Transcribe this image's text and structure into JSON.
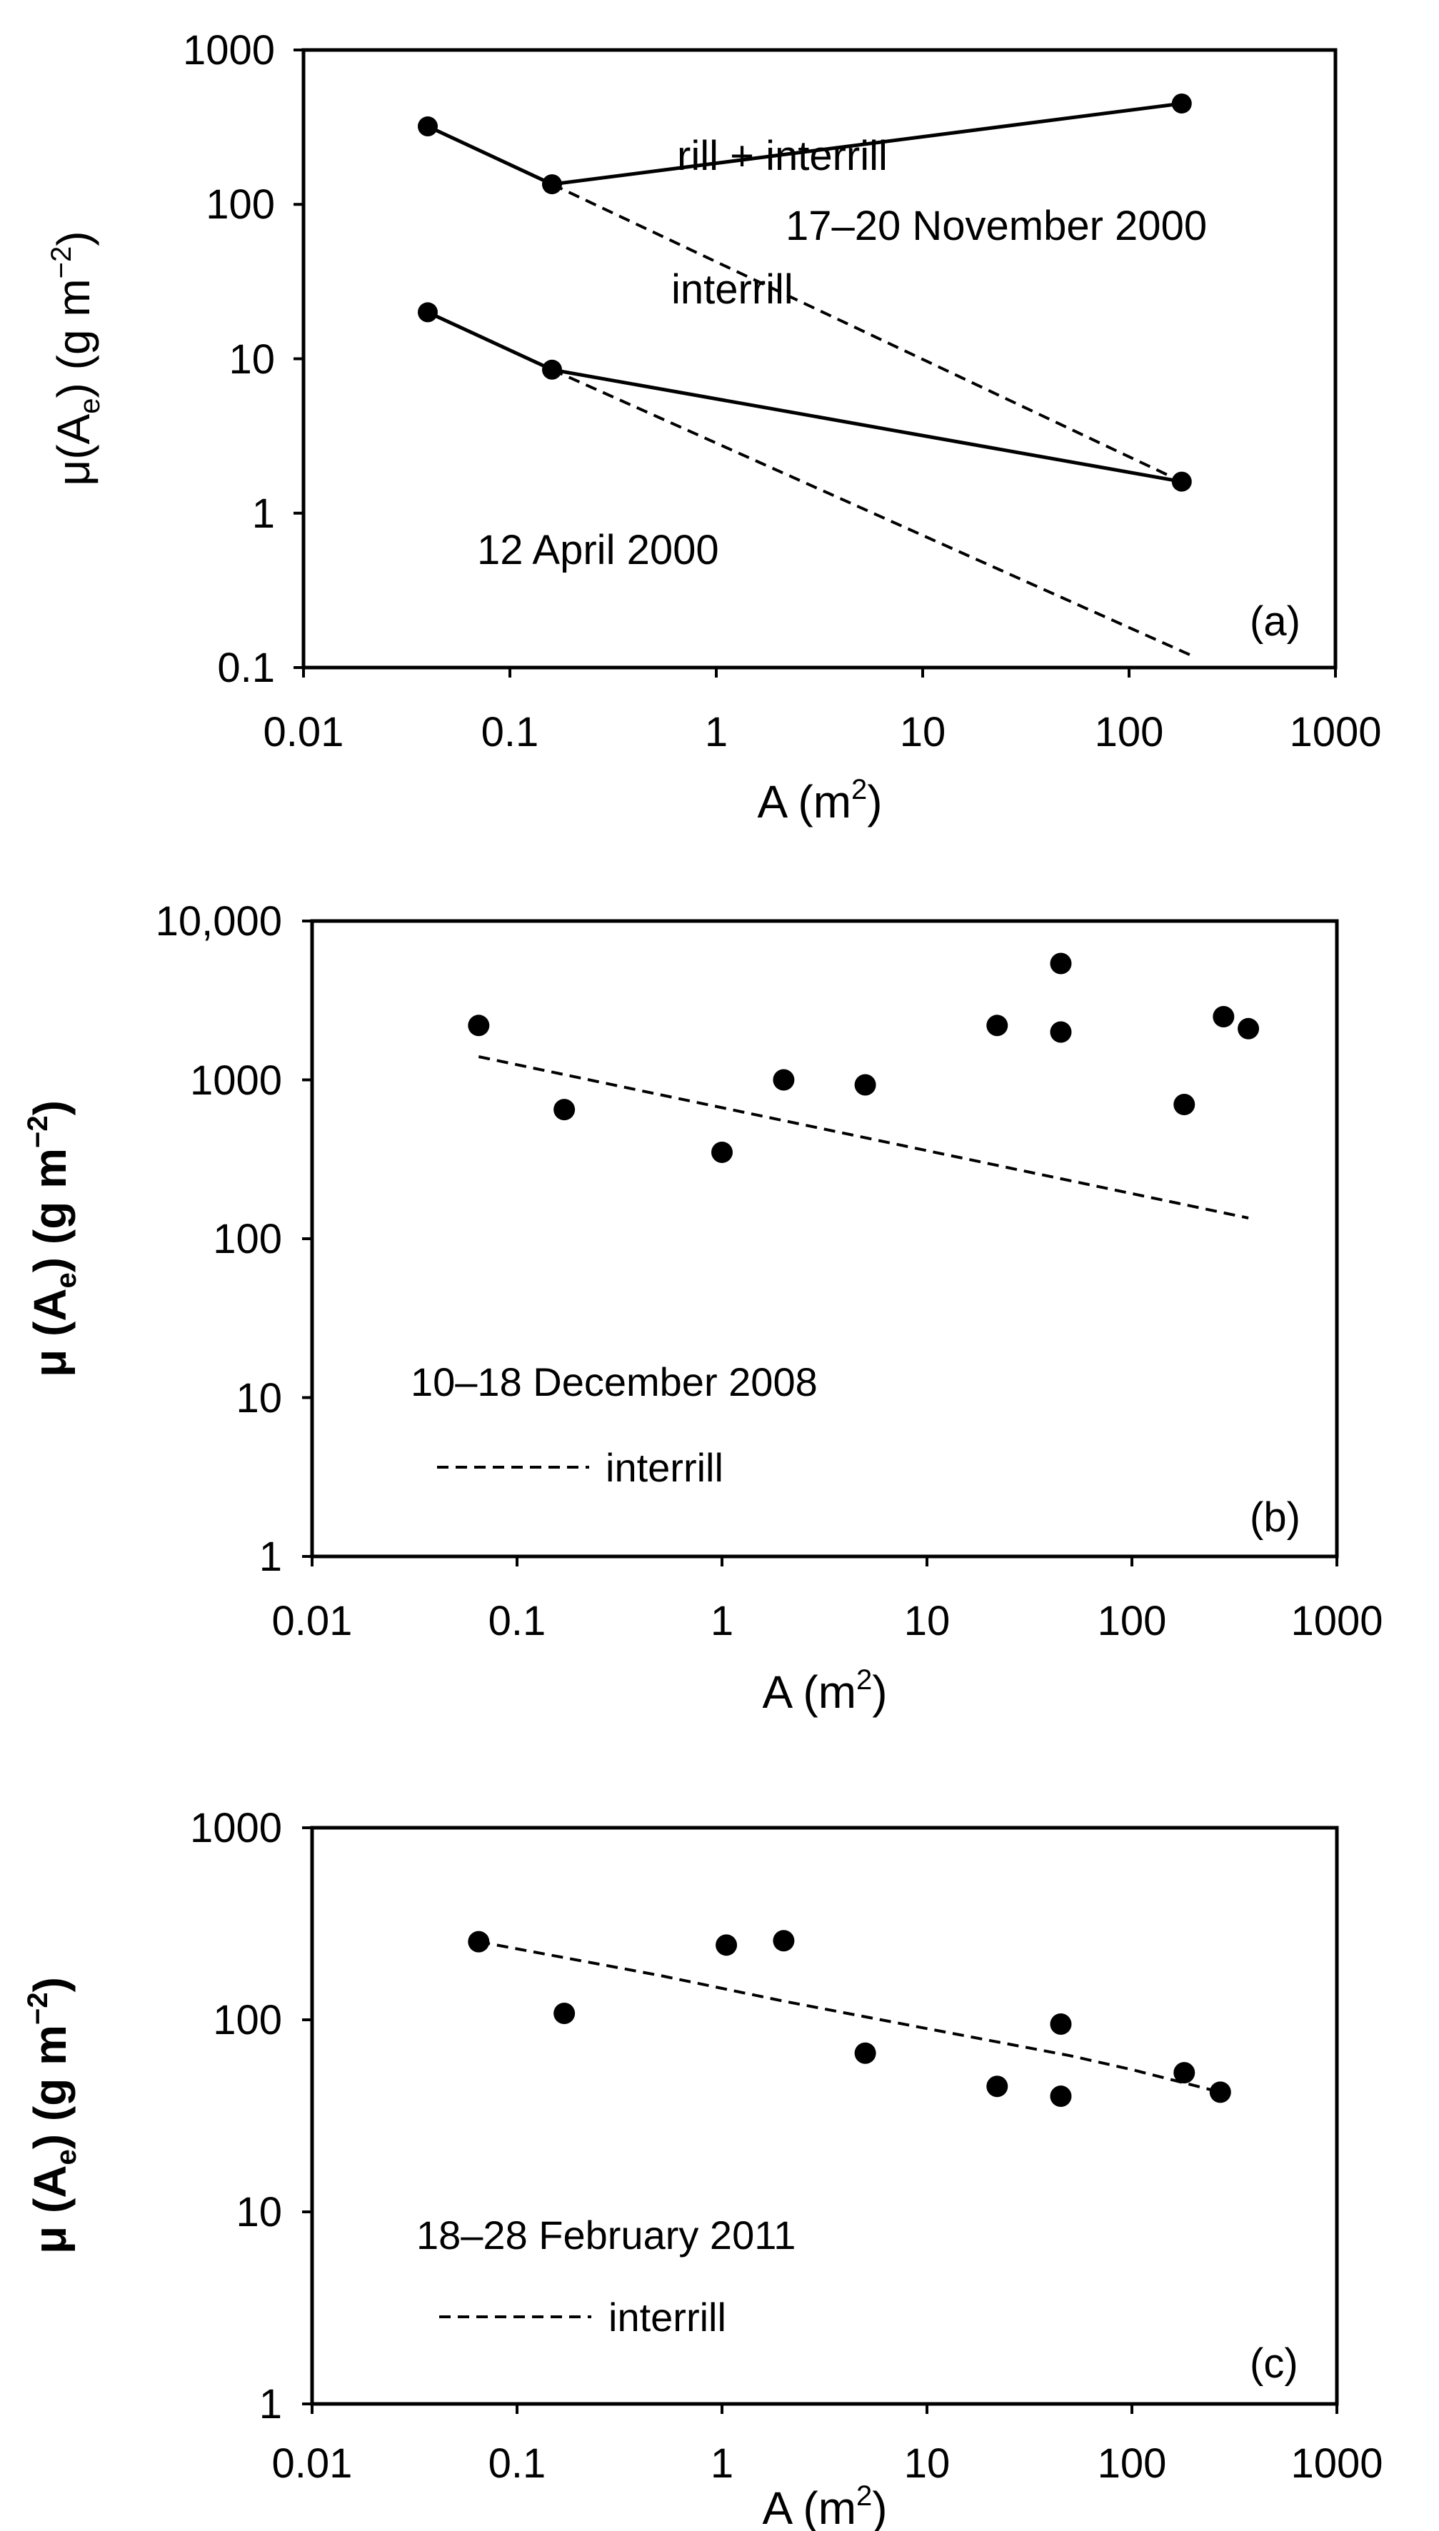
{
  "chart_data": [
    {
      "type": "line",
      "panel_label": "(a)",
      "xscale": "log",
      "yscale": "log",
      "xlim": [
        0.01,
        1000
      ],
      "ylim": [
        0.1,
        1000
      ],
      "xticks": [
        "0.01",
        "0.1",
        "1",
        "10",
        "100",
        "1000"
      ],
      "yticks": [
        "0.1",
        "1",
        "10",
        "100",
        "1000"
      ],
      "xlabel": {
        "main": "A (m",
        "sup": "2",
        "end": ")"
      },
      "ylabel": {
        "main": "μ(A",
        "sub": "e",
        "end": ") (g m",
        "sup": "−2",
        "end2": ")"
      },
      "series": [
        {
          "name": "17–20 November 2000 rill + interrill",
          "style": "solid",
          "markers": true,
          "x": [
            0.04,
            0.16,
            180
          ],
          "y": [
            320,
            135,
            450
          ]
        },
        {
          "name": "17–20 November 2000 interrill",
          "style": "dashed",
          "markers": false,
          "x": [
            0.16,
            180
          ],
          "y": [
            135,
            1.6
          ]
        },
        {
          "name": "12 April 2000 rill + interrill",
          "style": "solid",
          "markers": true,
          "x": [
            0.04,
            0.16,
            180
          ],
          "y": [
            20,
            8.5,
            1.6
          ]
        },
        {
          "name": "12 April 2000 interrill",
          "style": "dashed",
          "markers": false,
          "x": [
            0.16,
            200
          ],
          "y": [
            8.5,
            0.12
          ]
        }
      ],
      "annotations": {
        "rill_interrill": "rill + interrill",
        "interrill": "interrill",
        "event1": "17–20 November 2000",
        "event2": "12 April 2000"
      }
    },
    {
      "type": "scatter",
      "panel_label": "(b)",
      "xscale": "log",
      "yscale": "log",
      "xlim": [
        0.01,
        1000
      ],
      "ylim": [
        1,
        10000
      ],
      "xticks": [
        "0.01",
        "0.1",
        "1",
        "10",
        "100",
        "1000"
      ],
      "yticks": [
        "1",
        "10",
        "100",
        "1000",
        "10,000"
      ],
      "xlabel": {
        "main": "A (m",
        "sup": "2",
        "end": ")"
      },
      "ylabel": {
        "main": "μ (A",
        "sub": "e",
        "end": ") (g m",
        "sup": "−2",
        "end2": ")"
      },
      "points": {
        "x": [
          0.065,
          0.17,
          1.0,
          2.0,
          5.0,
          22,
          45,
          45,
          180,
          280,
          370
        ],
        "y": [
          2200,
          650,
          350,
          1000,
          930,
          2200,
          5400,
          2000,
          700,
          2500,
          2100
        ]
      },
      "trend": {
        "name": "interrill",
        "style": "dashed",
        "x": [
          0.065,
          370
        ],
        "y": [
          1400,
          135
        ]
      },
      "annotation": "10–18 December 2008",
      "legend": "interrill"
    },
    {
      "type": "scatter",
      "panel_label": "(c)",
      "xscale": "log",
      "yscale": "log",
      "xlim": [
        0.01,
        1000
      ],
      "ylim": [
        1,
        1000
      ],
      "xticks": [
        "0.01",
        "0.1",
        "1",
        "10",
        "100",
        "1000"
      ],
      "yticks": [
        "1",
        "10",
        "100",
        "1000"
      ],
      "xlabel": {
        "main": "A (m",
        "sup": "2",
        "end": ")"
      },
      "ylabel": {
        "main": "μ (A",
        "sub": "e",
        "end": ") (g m",
        "sup": "−2",
        "end2": ")"
      },
      "points": {
        "x": [
          0.065,
          0.17,
          1.05,
          2.0,
          5.0,
          22,
          45,
          45,
          180,
          270
        ],
        "y": [
          255,
          108,
          245,
          258,
          67,
          45,
          40,
          95,
          53,
          42
        ]
      },
      "trend": {
        "name": "interrill",
        "style": "dashed",
        "x": [
          0.065,
          0.5,
          2,
          10,
          50,
          100,
          270
        ],
        "y": [
          255,
          170,
          125,
          90,
          65,
          55,
          42
        ]
      },
      "annotation": "18–28 February 2011",
      "legend": "interrill"
    }
  ]
}
